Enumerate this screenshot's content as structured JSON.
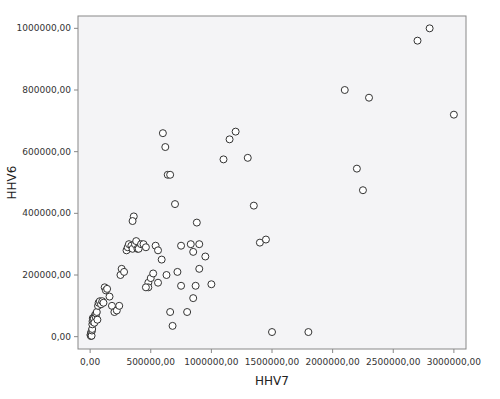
{
  "chart_data": {
    "type": "scatter",
    "xlabel": "HHV7",
    "ylabel": "HHV6",
    "xlim": [
      -100000,
      3100000
    ],
    "ylim": [
      -40000,
      1040000
    ],
    "xticks": [
      {
        "value": 0,
        "label": "0,00"
      },
      {
        "value": 500000,
        "label": "500000,00"
      },
      {
        "value": 1000000,
        "label": "1000000,00"
      },
      {
        "value": 1500000,
        "label": "1500000,00"
      },
      {
        "value": 2000000,
        "label": "2000000,00"
      },
      {
        "value": 2500000,
        "label": "2500000,00"
      },
      {
        "value": 3000000,
        "label": "3000000,00"
      }
    ],
    "yticks": [
      {
        "value": 0,
        "label": "0,00"
      },
      {
        "value": 200000,
        "label": "200000,00"
      },
      {
        "value": 400000,
        "label": "400000,00"
      },
      {
        "value": 600000,
        "label": "600000,00"
      },
      {
        "value": 800000,
        "label": "800000,00"
      },
      {
        "value": 1000000,
        "label": "1000000,00"
      }
    ],
    "grid": false,
    "color": "#333333",
    "x": [
      3000,
      5000,
      7000,
      8000,
      10000,
      12000,
      15000,
      17000,
      18000,
      20000,
      22000,
      25000,
      30000,
      35000,
      40000,
      45000,
      50000,
      55000,
      60000,
      65000,
      70000,
      80000,
      90000,
      100000,
      110000,
      120000,
      130000,
      140000,
      160000,
      180000,
      200000,
      220000,
      240000,
      250000,
      260000,
      280000,
      300000,
      310000,
      320000,
      340000,
      350000,
      360000,
      370000,
      380000,
      390000,
      400000,
      420000,
      440000,
      460000,
      480000,
      500000,
      520000,
      540000,
      560000,
      600000,
      620000,
      640000,
      660000,
      700000,
      720000,
      750000,
      800000,
      830000,
      850000,
      870000,
      900000,
      950000,
      1000000,
      1100000,
      1150000,
      1200000,
      1300000,
      1350000,
      1400000,
      1450000,
      1500000,
      1800000,
      2100000,
      2200000,
      2250000,
      2300000,
      2700000,
      2800000,
      3000000,
      750000,
      850000,
      560000,
      590000,
      630000,
      660000,
      480000,
      880000,
      460000,
      680000,
      900000,
      350000
    ],
    "y": [
      5000,
      8000,
      2000,
      12000,
      15000,
      3000,
      20000,
      25000,
      40000,
      50000,
      60000,
      55000,
      60000,
      45000,
      70000,
      65000,
      75000,
      80000,
      55000,
      100000,
      110000,
      115000,
      105000,
      115000,
      110000,
      160000,
      150000,
      155000,
      130000,
      100000,
      80000,
      85000,
      100000,
      200000,
      220000,
      210000,
      280000,
      290000,
      300000,
      295000,
      285000,
      390000,
      300000,
      310000,
      285000,
      285000,
      300000,
      300000,
      290000,
      175000,
      190000,
      205000,
      295000,
      175000,
      660000,
      615000,
      525000,
      525000,
      430000,
      210000,
      295000,
      80000,
      300000,
      275000,
      165000,
      220000,
      260000,
      170000,
      575000,
      640000,
      665000,
      580000,
      425000,
      305000,
      315000,
      15000,
      15000,
      800000,
      545000,
      475000,
      775000,
      960000,
      1000000,
      720000,
      165000,
      125000,
      280000,
      250000,
      200000,
      80000,
      160000,
      370000,
      160000,
      35000,
      300000,
      375000
    ]
  }
}
